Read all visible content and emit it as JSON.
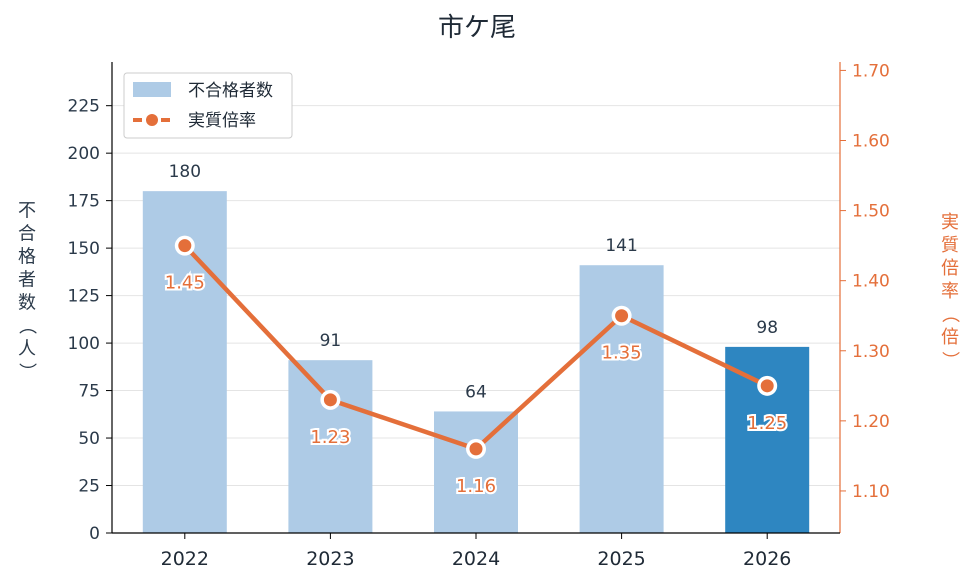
{
  "chart_data": {
    "type": "bar",
    "title": "市ケ尾",
    "categories": [
      "2022",
      "2023",
      "2024",
      "2025",
      "2026"
    ],
    "series": [
      {
        "name": "不合格者数",
        "type": "bar",
        "axis": "left",
        "values": [
          180,
          91,
          64,
          141,
          98
        ]
      },
      {
        "name": "実質倍率",
        "type": "line",
        "axis": "right",
        "values": [
          1.45,
          1.23,
          1.16,
          1.35,
          1.25
        ]
      }
    ],
    "value_labels": {
      "bars": [
        "180",
        "91",
        "64",
        "141",
        "98"
      ],
      "line": [
        "1.45",
        "1.23",
        "1.16",
        "1.35",
        "1.25"
      ]
    },
    "ylabel_left": "不合格者数（人）",
    "ylabel_right": "実質倍率（倍）",
    "ylim_left": [
      0,
      248
    ],
    "ylim_right": [
      1.04,
      1.712
    ],
    "yticks_left": [
      "0",
      "25",
      "50",
      "75",
      "100",
      "125",
      "150",
      "175",
      "200",
      "225"
    ],
    "yticks_right": [
      "1.10",
      "1.20",
      "1.30",
      "1.40",
      "1.50",
      "1.60",
      "1.70"
    ],
    "highlight_index": 4,
    "grid": true,
    "legend_position": "top-left",
    "colors": {
      "bar": "#aecbe6",
      "bar_highlight": "#2e86c1",
      "line": "#e46f3a",
      "grid": "#e4e4e4",
      "axis": "#000000",
      "text": "#2b3a4a",
      "right_axis_text": "#e46f3a"
    }
  }
}
